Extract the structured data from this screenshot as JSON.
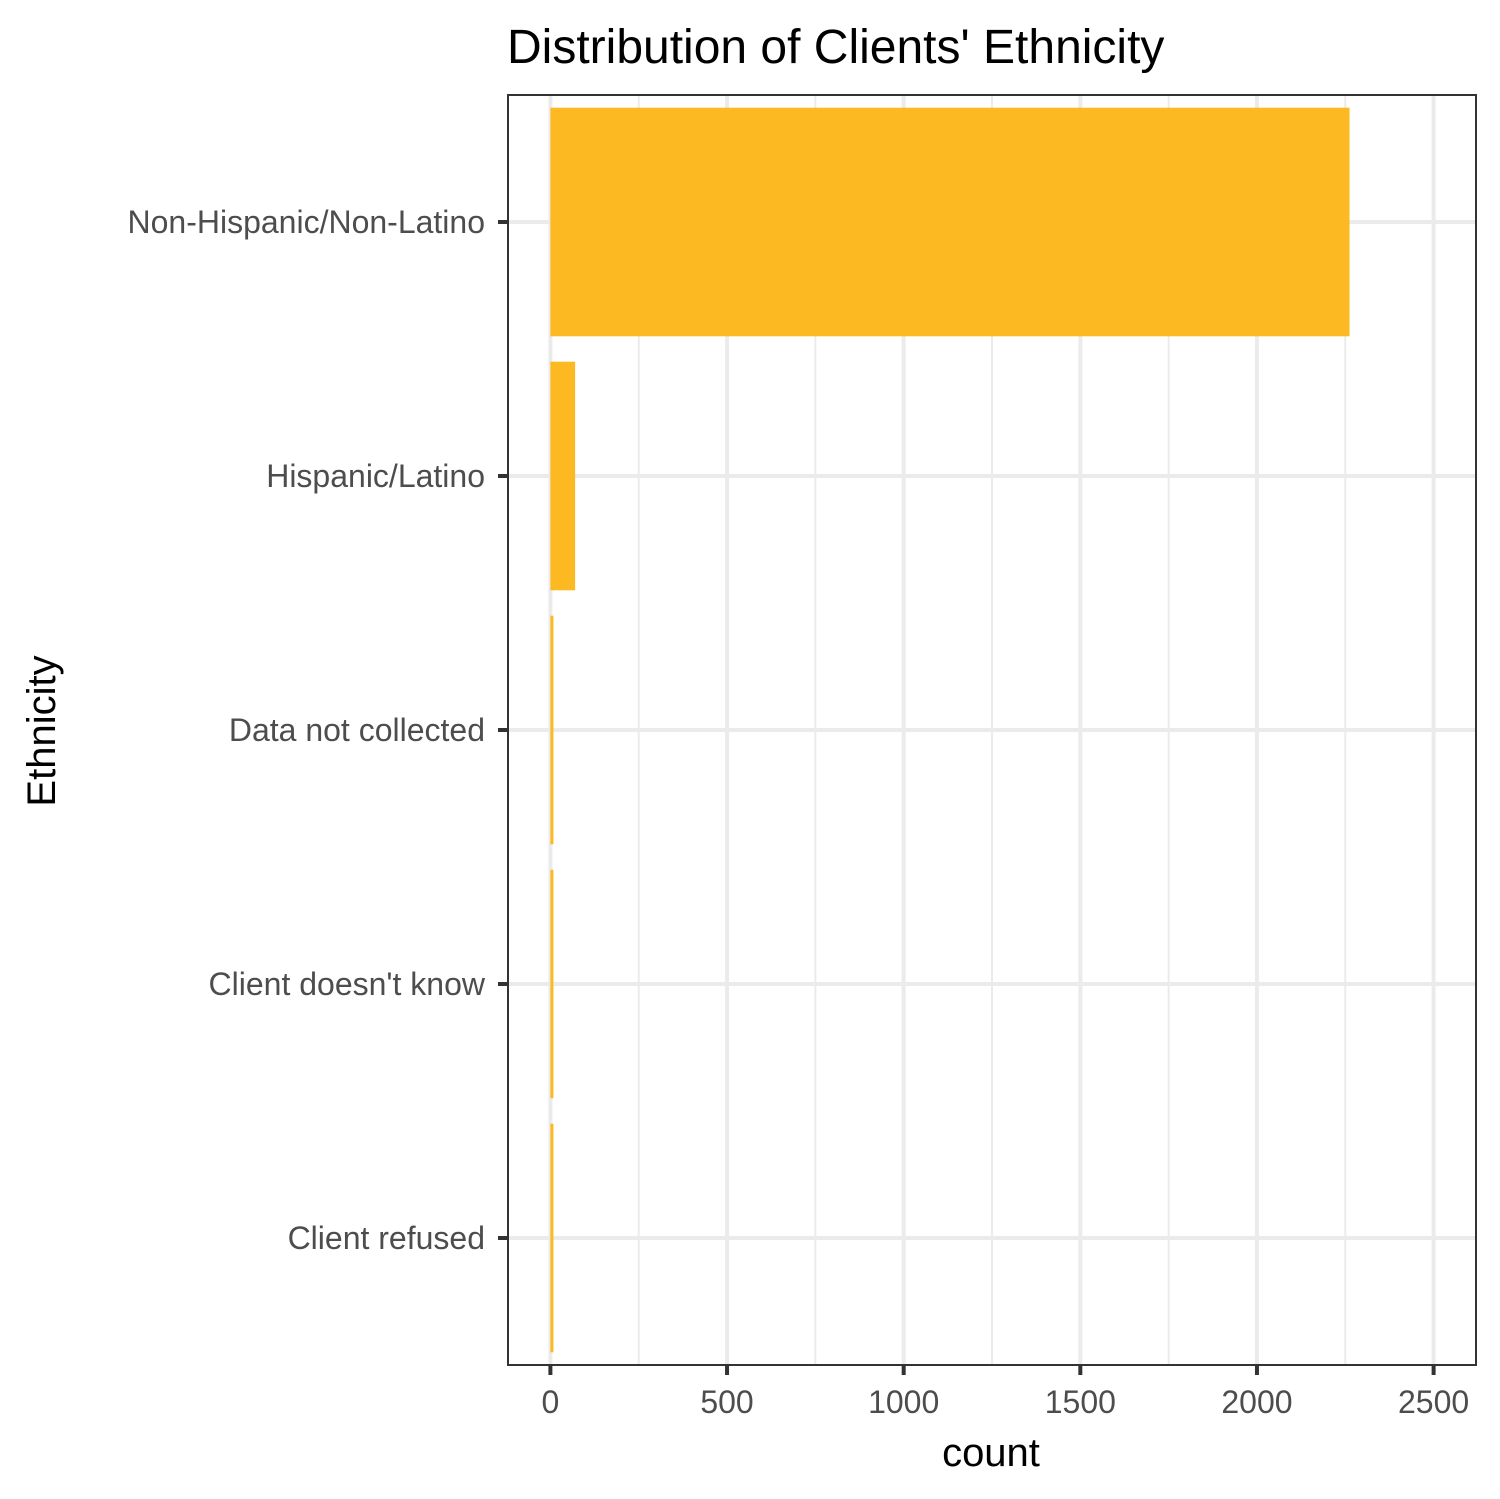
{
  "chart_data": {
    "type": "bar",
    "orientation": "horizontal",
    "title": "Distribution of Clients' Ethnicity",
    "xlabel": "count",
    "ylabel": "Ethnicity",
    "categories": [
      "Non-Hispanic/Non-Latino",
      "Hispanic/Latino",
      "Data not collected",
      "Client doesn't know",
      "Client refused"
    ],
    "values": [
      2262,
      70,
      5,
      5,
      5
    ],
    "xlim": [
      -120,
      2620
    ],
    "x_ticks": [
      0,
      500,
      1000,
      1500,
      2000,
      2500
    ],
    "x_tick_labels": [
      "0",
      "500",
      "1000",
      "1500",
      "2000",
      "2500"
    ],
    "grid": true,
    "legend": "none",
    "colors": {
      "bar": "#FDB922",
      "grid": "#EBEBEB",
      "panel_border": "#333333",
      "tick_label": "#4D4D4D",
      "text": "#000000"
    }
  }
}
